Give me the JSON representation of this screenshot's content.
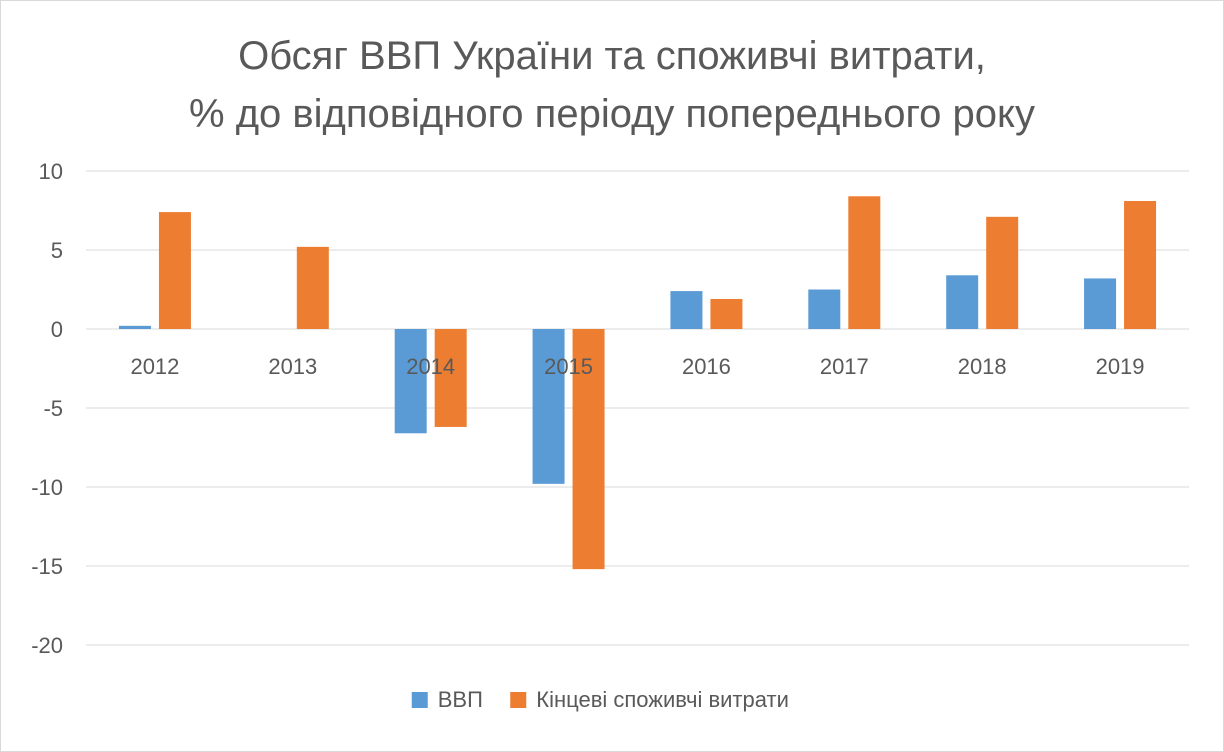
{
  "chart_data": {
    "type": "bar",
    "title_lines": [
      "Обсяг ВВП України та споживчі витрати,",
      "% до відповідного періоду попереднього року"
    ],
    "categories": [
      "2012",
      "2013",
      "2014",
      "2015",
      "2016",
      "2017",
      "2018",
      "2019"
    ],
    "series": [
      {
        "name": "ВВП",
        "color": "#5b9bd5",
        "values": [
          0.2,
          0.0,
          -6.6,
          -9.8,
          2.4,
          2.5,
          3.4,
          3.2
        ]
      },
      {
        "name": "Кінцеві споживчі витрати",
        "color": "#ed7d31",
        "values": [
          7.4,
          5.2,
          -6.2,
          -15.2,
          1.9,
          8.4,
          7.1,
          8.1
        ]
      }
    ],
    "ylim": [
      -20,
      10
    ],
    "yticks": [
      10,
      5,
      0,
      -5,
      -10,
      -15,
      -20
    ],
    "grid": true,
    "legend_position": "bottom",
    "xlabel": "",
    "ylabel": ""
  }
}
